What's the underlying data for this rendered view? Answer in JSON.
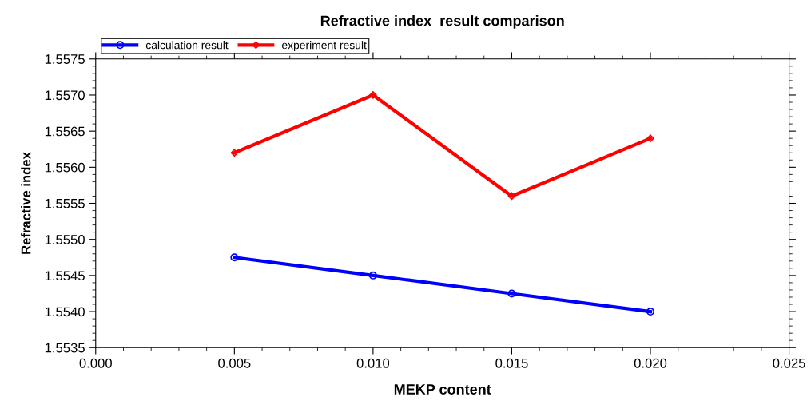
{
  "chart_data": {
    "type": "line",
    "title": "Refractive index  result comparison",
    "xlabel": "MEKP content",
    "ylabel": "Refractive index",
    "x": [
      0.005,
      0.01,
      0.015,
      0.02
    ],
    "series": [
      {
        "name": "calculation result",
        "color": "#0000ff",
        "marker": "circle",
        "values": [
          1.55475,
          1.5545,
          1.55425,
          1.554
        ]
      },
      {
        "name": "experiment result",
        "color": "#ff0000",
        "marker": "diamond",
        "values": [
          1.5562,
          1.557,
          1.5556,
          1.5564
        ]
      }
    ],
    "xlim": [
      0.0,
      0.025
    ],
    "xticks": [
      {
        "value": 0.0,
        "label": "0.000"
      },
      {
        "value": 0.005,
        "label": "0.005"
      },
      {
        "value": 0.01,
        "label": "0.010"
      },
      {
        "value": 0.015,
        "label": "0.015"
      },
      {
        "value": 0.02,
        "label": "0.020"
      },
      {
        "value": 0.025,
        "label": "0.025"
      }
    ],
    "ylim": [
      1.5535,
      1.5575
    ],
    "yticks": [
      {
        "value": 1.5535,
        "label": "1.5535"
      },
      {
        "value": 1.554,
        "label": "1.5540"
      },
      {
        "value": 1.5545,
        "label": "1.5545"
      },
      {
        "value": 1.555,
        "label": "1.5550"
      },
      {
        "value": 1.5555,
        "label": "1.5555"
      },
      {
        "value": 1.556,
        "label": "1.5560"
      },
      {
        "value": 1.5565,
        "label": "1.5565"
      },
      {
        "value": 1.557,
        "label": "1.5570"
      },
      {
        "value": 1.5575,
        "label": "1.5575"
      }
    ],
    "grid": false,
    "legend": "top left",
    "line_style": "solid"
  }
}
